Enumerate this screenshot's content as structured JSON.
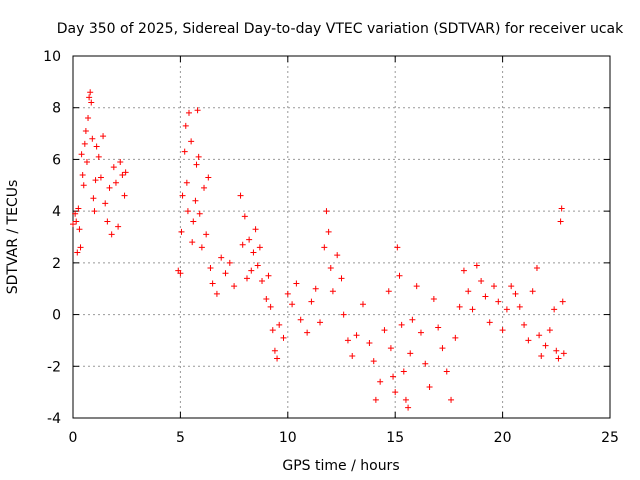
{
  "chart_data": {
    "type": "scatter",
    "title": "Day 350 of 2025, Sidereal Day-to-day VTEC variation (SDTVAR) for receiver ucak",
    "xlabel": "GPS time / hours",
    "ylabel": "SDTVAR / TECUs",
    "xlim": [
      0,
      25
    ],
    "ylim": [
      -4,
      10
    ],
    "xticks": [
      "0",
      "5",
      "10",
      "15",
      "20",
      "25"
    ],
    "yticks": [
      "-4",
      "-2",
      "0",
      "2",
      "4",
      "6",
      "8",
      "10"
    ],
    "grid": true,
    "marker": "+",
    "series": [
      {
        "name": "SDTVAR",
        "color": "#ff0000",
        "points": [
          [
            0.0,
            3.5
          ],
          [
            0.1,
            3.9
          ],
          [
            0.15,
            3.6
          ],
          [
            0.2,
            2.4
          ],
          [
            0.25,
            4.1
          ],
          [
            0.3,
            3.3
          ],
          [
            0.35,
            2.6
          ],
          [
            0.4,
            6.2
          ],
          [
            0.45,
            5.4
          ],
          [
            0.5,
            5.0
          ],
          [
            0.55,
            6.6
          ],
          [
            0.6,
            7.1
          ],
          [
            0.65,
            5.9
          ],
          [
            0.7,
            7.6
          ],
          [
            0.75,
            8.4
          ],
          [
            0.8,
            8.6
          ],
          [
            0.85,
            8.2
          ],
          [
            0.9,
            6.8
          ],
          [
            0.95,
            4.5
          ],
          [
            1.0,
            4.0
          ],
          [
            1.05,
            5.2
          ],
          [
            1.1,
            6.5
          ],
          [
            1.2,
            6.1
          ],
          [
            1.3,
            5.3
          ],
          [
            1.4,
            6.9
          ],
          [
            1.5,
            4.3
          ],
          [
            1.6,
            3.6
          ],
          [
            1.7,
            4.9
          ],
          [
            1.8,
            3.1
          ],
          [
            1.9,
            5.7
          ],
          [
            2.0,
            5.1
          ],
          [
            2.1,
            3.4
          ],
          [
            2.2,
            5.9
          ],
          [
            2.3,
            5.4
          ],
          [
            2.4,
            4.6
          ],
          [
            2.45,
            5.5
          ],
          [
            4.9,
            1.7
          ],
          [
            5.0,
            1.6
          ],
          [
            5.05,
            3.2
          ],
          [
            5.1,
            4.6
          ],
          [
            5.2,
            6.3
          ],
          [
            5.25,
            7.3
          ],
          [
            5.3,
            5.1
          ],
          [
            5.35,
            4.0
          ],
          [
            5.4,
            7.8
          ],
          [
            5.5,
            6.7
          ],
          [
            5.55,
            2.8
          ],
          [
            5.6,
            3.6
          ],
          [
            5.7,
            4.4
          ],
          [
            5.75,
            5.8
          ],
          [
            5.8,
            7.9
          ],
          [
            5.85,
            6.1
          ],
          [
            5.9,
            3.9
          ],
          [
            6.0,
            2.6
          ],
          [
            6.1,
            4.9
          ],
          [
            6.2,
            3.1
          ],
          [
            6.3,
            5.3
          ],
          [
            6.4,
            1.8
          ],
          [
            6.5,
            1.2
          ],
          [
            6.7,
            0.8
          ],
          [
            6.9,
            2.2
          ],
          [
            7.1,
            1.6
          ],
          [
            7.3,
            2.0
          ],
          [
            7.5,
            1.1
          ],
          [
            7.8,
            4.6
          ],
          [
            7.9,
            2.7
          ],
          [
            8.0,
            3.8
          ],
          [
            8.1,
            1.4
          ],
          [
            8.2,
            2.9
          ],
          [
            8.3,
            1.7
          ],
          [
            8.4,
            2.4
          ],
          [
            8.5,
            3.3
          ],
          [
            8.6,
            1.9
          ],
          [
            8.7,
            2.6
          ],
          [
            8.8,
            1.3
          ],
          [
            9.0,
            0.6
          ],
          [
            9.1,
            1.5
          ],
          [
            9.2,
            0.3
          ],
          [
            9.3,
            -0.6
          ],
          [
            9.4,
            -1.4
          ],
          [
            9.5,
            -1.7
          ],
          [
            9.6,
            -0.4
          ],
          [
            9.8,
            -0.9
          ],
          [
            10.0,
            0.8
          ],
          [
            10.2,
            0.4
          ],
          [
            10.4,
            1.2
          ],
          [
            10.6,
            -0.2
          ],
          [
            10.9,
            -0.7
          ],
          [
            11.1,
            0.5
          ],
          [
            11.3,
            1.0
          ],
          [
            11.5,
            -0.3
          ],
          [
            11.7,
            2.6
          ],
          [
            11.8,
            4.0
          ],
          [
            11.9,
            3.2
          ],
          [
            12.0,
            1.8
          ],
          [
            12.1,
            0.9
          ],
          [
            12.3,
            2.3
          ],
          [
            12.5,
            1.4
          ],
          [
            12.6,
            0.0
          ],
          [
            12.8,
            -1.0
          ],
          [
            13.0,
            -1.6
          ],
          [
            13.2,
            -0.8
          ],
          [
            13.5,
            0.4
          ],
          [
            13.8,
            -1.1
          ],
          [
            14.0,
            -1.8
          ],
          [
            14.1,
            -3.3
          ],
          [
            14.3,
            -2.6
          ],
          [
            14.5,
            -0.6
          ],
          [
            14.7,
            0.9
          ],
          [
            14.8,
            -1.3
          ],
          [
            14.9,
            -2.4
          ],
          [
            15.0,
            -3.0
          ],
          [
            15.1,
            2.6
          ],
          [
            15.2,
            1.5
          ],
          [
            15.3,
            -0.4
          ],
          [
            15.4,
            -2.2
          ],
          [
            15.5,
            -3.3
          ],
          [
            15.6,
            -3.6
          ],
          [
            15.7,
            -1.5
          ],
          [
            15.8,
            -0.2
          ],
          [
            16.0,
            1.1
          ],
          [
            16.2,
            -0.7
          ],
          [
            16.4,
            -1.9
          ],
          [
            16.6,
            -2.8
          ],
          [
            16.8,
            0.6
          ],
          [
            17.0,
            -0.5
          ],
          [
            17.2,
            -1.3
          ],
          [
            17.4,
            -2.2
          ],
          [
            17.6,
            -3.3
          ],
          [
            17.8,
            -0.9
          ],
          [
            18.0,
            0.3
          ],
          [
            18.2,
            1.7
          ],
          [
            18.4,
            0.9
          ],
          [
            18.6,
            0.2
          ],
          [
            18.8,
            1.9
          ],
          [
            19.0,
            1.3
          ],
          [
            19.2,
            0.7
          ],
          [
            19.4,
            -0.3
          ],
          [
            19.6,
            1.1
          ],
          [
            19.8,
            0.5
          ],
          [
            20.0,
            -0.6
          ],
          [
            20.2,
            0.2
          ],
          [
            20.4,
            1.1
          ],
          [
            20.6,
            0.8
          ],
          [
            20.8,
            0.3
          ],
          [
            21.0,
            -0.4
          ],
          [
            21.2,
            -1.0
          ],
          [
            21.4,
            0.9
          ],
          [
            21.6,
            1.8
          ],
          [
            21.7,
            -0.8
          ],
          [
            21.8,
            -1.6
          ],
          [
            22.0,
            -1.2
          ],
          [
            22.2,
            -0.6
          ],
          [
            22.4,
            0.2
          ],
          [
            22.5,
            -1.4
          ],
          [
            22.6,
            -1.7
          ],
          [
            22.7,
            3.6
          ],
          [
            22.75,
            4.1
          ],
          [
            22.8,
            0.5
          ],
          [
            22.85,
            -1.5
          ]
        ]
      }
    ]
  }
}
